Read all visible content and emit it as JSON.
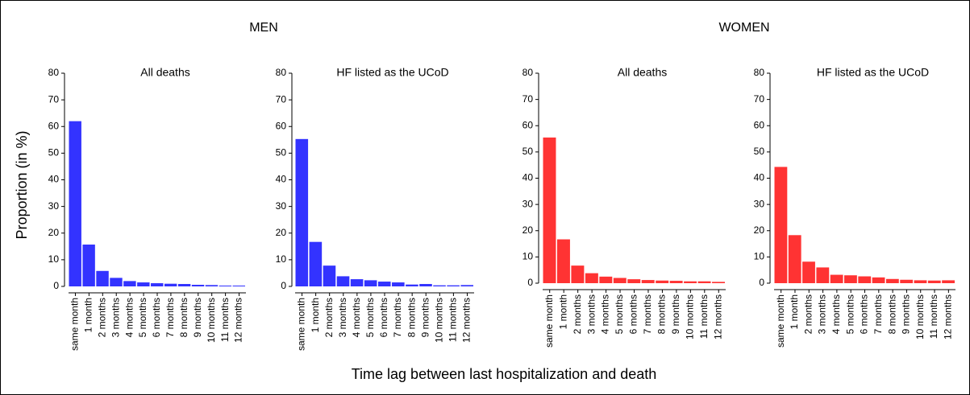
{
  "figure": {
    "ylabel": "Proportion (in %)",
    "xlabel": "Time lag between last hospitalization and death",
    "groups": [
      {
        "label": "MEN",
        "color": "#2b2bff"
      },
      {
        "label": "WOMEN",
        "color": "#ff3333"
      }
    ]
  },
  "chart_data": [
    {
      "type": "bar",
      "title": "All deaths",
      "color": "#3333ff",
      "categories": [
        "same month",
        "1 month",
        "2 months",
        "3 months",
        "4 months",
        "5 months",
        "6 months",
        "7 months",
        "8 months",
        "9 months",
        "10 months",
        "11 months",
        "12 months"
      ],
      "values": [
        62,
        15.7,
        5.8,
        3.2,
        2.0,
        1.5,
        1.2,
        1.0,
        0.9,
        0.6,
        0.5,
        0.3,
        0.3
      ],
      "ylim": [
        0,
        80
      ],
      "yticks": [
        0,
        10,
        20,
        30,
        40,
        50,
        60,
        70,
        80
      ]
    },
    {
      "type": "bar",
      "title": "HF listed as the UCoD",
      "color": "#3333ff",
      "categories": [
        "same month",
        "1 month",
        "2 months",
        "3 months",
        "4 months",
        "5 months",
        "6 months",
        "7 months",
        "8 months",
        "9 months",
        "10 months",
        "11 months",
        "12 months"
      ],
      "values": [
        55.3,
        16.7,
        7.8,
        3.8,
        2.7,
        2.3,
        1.8,
        1.5,
        0.7,
        0.9,
        0.4,
        0.4,
        0.5
      ],
      "ylim": [
        0,
        80
      ],
      "yticks": [
        0,
        10,
        20,
        30,
        40,
        50,
        60,
        70,
        80
      ]
    },
    {
      "type": "bar",
      "title": "All deaths",
      "color": "#ff3333",
      "categories": [
        "same month",
        "1 month",
        "2 months",
        "3 months",
        "4 months",
        "5 months",
        "6 months",
        "7 months",
        "8 months",
        "9 months",
        "10 months",
        "11 months",
        "12 months"
      ],
      "values": [
        55.5,
        16.7,
        6.7,
        3.8,
        2.5,
        2.0,
        1.5,
        1.2,
        1.0,
        0.9,
        0.7,
        0.7,
        0.5
      ],
      "ylim": [
        0,
        80
      ],
      "yticks": [
        0,
        10,
        20,
        30,
        40,
        50,
        60,
        70,
        80
      ]
    },
    {
      "type": "bar",
      "title": "HF listed as the UCoD",
      "color": "#ff3333",
      "categories": [
        "same month",
        "1 month",
        "2 months",
        "3 months",
        "4 months",
        "5 months",
        "6 months",
        "7 months",
        "8 months",
        "9 months",
        "10 months",
        "11 months",
        "12 months"
      ],
      "values": [
        44.3,
        18.3,
        8.2,
        6.0,
        3.2,
        3.0,
        2.6,
        2.2,
        1.6,
        1.3,
        1.1,
        1.0,
        1.1
      ],
      "ylim": [
        0,
        80
      ],
      "yticks": [
        0,
        10,
        20,
        30,
        40,
        50,
        60,
        70,
        80
      ]
    }
  ]
}
